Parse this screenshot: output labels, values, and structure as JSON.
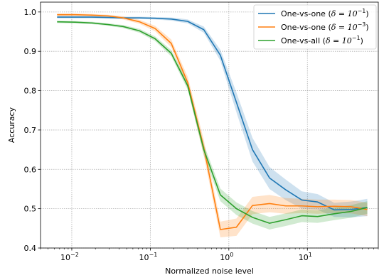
{
  "chart_data": {
    "type": "line",
    "title": "",
    "xlabel": "Normalized noise level",
    "ylabel": "Accuracy",
    "xscale": "log",
    "xlim": [
      0.004,
      80
    ],
    "ylim": [
      0.4,
      1.025
    ],
    "x_ticks": [
      {
        "value": 0.01,
        "base": "10",
        "exp": "−2"
      },
      {
        "value": 0.1,
        "base": "10",
        "exp": "−1"
      },
      {
        "value": 1,
        "base": "10",
        "exp": "0"
      },
      {
        "value": 10,
        "base": "10",
        "exp": "1"
      }
    ],
    "y_ticks": [
      {
        "value": 0.4,
        "label": "0.4"
      },
      {
        "value": 0.5,
        "label": "0.5"
      },
      {
        "value": 0.6,
        "label": "0.6"
      },
      {
        "value": 0.7,
        "label": "0.7"
      },
      {
        "value": 0.8,
        "label": "0.8"
      },
      {
        "value": 0.9,
        "label": "0.9"
      },
      {
        "value": 1.0,
        "label": "1.0"
      }
    ],
    "grid": true,
    "legend_position": "top-right",
    "series": [
      {
        "name": "One-vs-one (δ = 10⁻¹)",
        "legend_prefix": "One-vs-one (",
        "legend_math": "δ = 10",
        "legend_exp": "−1",
        "legend_suffix": ")",
        "color": "#1f77b4",
        "x": [
          0.0065,
          0.011,
          0.018,
          0.029,
          0.045,
          0.073,
          0.115,
          0.185,
          0.3,
          0.48,
          0.78,
          1.25,
          2.0,
          3.3,
          5.3,
          8.5,
          13.5,
          22,
          36,
          58
        ],
        "y": [
          0.987,
          0.987,
          0.987,
          0.986,
          0.985,
          0.985,
          0.984,
          0.982,
          0.976,
          0.955,
          0.89,
          0.77,
          0.65,
          0.578,
          0.548,
          0.522,
          0.517,
          0.497,
          0.498,
          0.503
        ],
        "band": [
          0.003,
          0.003,
          0.003,
          0.003,
          0.003,
          0.003,
          0.003,
          0.004,
          0.005,
          0.008,
          0.014,
          0.025,
          0.03,
          0.028,
          0.026,
          0.022,
          0.02,
          0.018,
          0.02,
          0.022
        ]
      },
      {
        "name": "One-vs-one (δ = 10⁻³)",
        "legend_prefix": "One-vs-one (",
        "legend_math": "δ = 10",
        "legend_exp": "−3",
        "legend_suffix": ")",
        "color": "#ff7f0e",
        "x": [
          0.0065,
          0.011,
          0.018,
          0.029,
          0.045,
          0.073,
          0.115,
          0.185,
          0.3,
          0.48,
          0.78,
          1.25,
          2.0,
          3.3,
          5.3,
          8.5,
          13.5,
          22,
          36,
          58
        ],
        "y": [
          0.993,
          0.993,
          0.992,
          0.99,
          0.985,
          0.975,
          0.958,
          0.92,
          0.82,
          0.655,
          0.447,
          0.453,
          0.508,
          0.513,
          0.507,
          0.507,
          0.505,
          0.506,
          0.505,
          0.498
        ],
        "band": [
          0.003,
          0.003,
          0.003,
          0.003,
          0.004,
          0.005,
          0.007,
          0.01,
          0.015,
          0.02,
          0.02,
          0.022,
          0.022,
          0.022,
          0.02,
          0.018,
          0.018,
          0.017,
          0.017,
          0.017
        ]
      },
      {
        "name": "One-vs-all (δ = 10⁻¹)",
        "legend_prefix": "One-vs-all (",
        "legend_math": "δ = 10",
        "legend_exp": "−1",
        "legend_suffix": ")",
        "color": "#2ca02c",
        "x": [
          0.0065,
          0.011,
          0.018,
          0.029,
          0.045,
          0.073,
          0.115,
          0.185,
          0.3,
          0.48,
          0.78,
          1.25,
          2.0,
          3.3,
          5.3,
          8.5,
          13.5,
          22,
          36,
          58
        ],
        "y": [
          0.975,
          0.974,
          0.972,
          0.968,
          0.963,
          0.952,
          0.932,
          0.895,
          0.812,
          0.65,
          0.535,
          0.5,
          0.478,
          0.463,
          0.472,
          0.482,
          0.48,
          0.487,
          0.493,
          0.503
        ],
        "band": [
          0.003,
          0.003,
          0.003,
          0.003,
          0.004,
          0.005,
          0.006,
          0.008,
          0.01,
          0.014,
          0.016,
          0.016,
          0.016,
          0.016,
          0.016,
          0.016,
          0.016,
          0.016,
          0.016,
          0.016
        ]
      }
    ]
  }
}
